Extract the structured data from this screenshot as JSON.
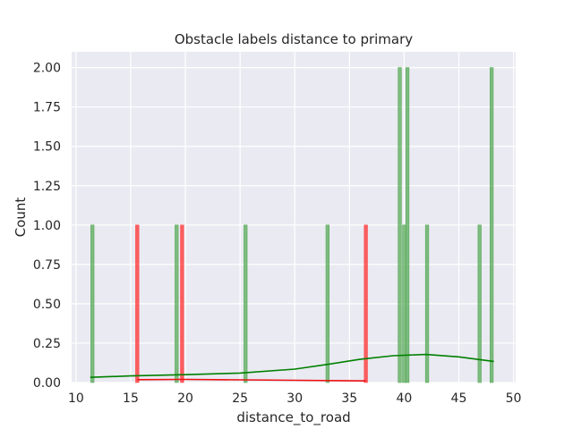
{
  "chart_data": {
    "type": "bar",
    "title": "Obstacle labels distance to primary",
    "xlabel": "distance_to_road",
    "ylabel": "Count",
    "xlim": [
      9.6,
      50.2
    ],
    "ylim": [
      0,
      2.1
    ],
    "xticks": [
      10,
      15,
      20,
      25,
      30,
      35,
      40,
      45,
      50
    ],
    "yticks": [
      0.0,
      0.25,
      0.5,
      0.75,
      1.0,
      1.25,
      1.5,
      1.75,
      2.0
    ],
    "ytick_labels": [
      "0.00",
      "0.25",
      "0.50",
      "0.75",
      "1.00",
      "1.25",
      "1.50",
      "1.75",
      "2.00"
    ],
    "grid": true,
    "series": [
      {
        "kind": "histogram",
        "color": "#4ea64e",
        "bars": [
          {
            "x": 11.5,
            "count": 1
          },
          {
            "x": 19.2,
            "count": 1
          },
          {
            "x": 25.5,
            "count": 1
          },
          {
            "x": 33.0,
            "count": 1
          },
          {
            "x": 39.6,
            "count": 2
          },
          {
            "x": 40.0,
            "count": 1
          },
          {
            "x": 40.3,
            "count": 2
          },
          {
            "x": 42.1,
            "count": 1
          },
          {
            "x": 46.9,
            "count": 1
          },
          {
            "x": 48.0,
            "count": 2
          }
        ],
        "kde": [
          [
            11.3,
            0.033
          ],
          [
            15,
            0.042
          ],
          [
            20,
            0.05
          ],
          [
            25,
            0.06
          ],
          [
            30,
            0.085
          ],
          [
            33,
            0.115
          ],
          [
            36,
            0.148
          ],
          [
            39,
            0.17
          ],
          [
            42,
            0.178
          ],
          [
            45,
            0.163
          ],
          [
            48.2,
            0.134
          ]
        ]
      },
      {
        "kind": "histogram",
        "color": "#ff3b3b",
        "bars": [
          {
            "x": 15.6,
            "count": 1
          },
          {
            "x": 19.7,
            "count": 1
          },
          {
            "x": 36.5,
            "count": 1
          }
        ],
        "kde": [
          [
            15.6,
            0.018
          ],
          [
            20,
            0.02
          ],
          [
            25,
            0.017
          ],
          [
            30,
            0.014
          ],
          [
            36.5,
            0.01
          ]
        ]
      }
    ]
  }
}
